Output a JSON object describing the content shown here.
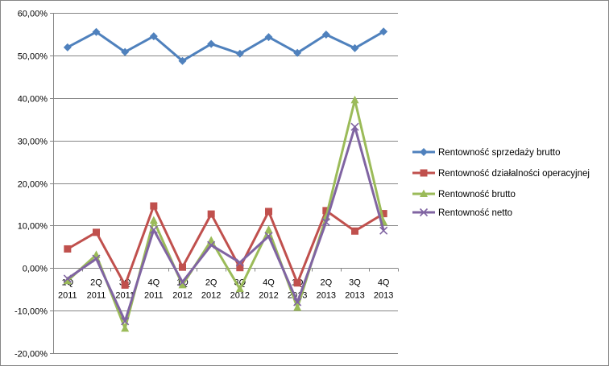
{
  "chart_data": {
    "type": "line",
    "categories": [
      [
        "1Q",
        "2011"
      ],
      [
        "2Q",
        "2011"
      ],
      [
        "3Q",
        "2011"
      ],
      [
        "4Q",
        "2011"
      ],
      [
        "1Q",
        "2012"
      ],
      [
        "2Q",
        "2012"
      ],
      [
        "3Q",
        "2012"
      ],
      [
        "4Q",
        "2012"
      ],
      [
        "1Q",
        "2013"
      ],
      [
        "2Q",
        "2013"
      ],
      [
        "3Q",
        "2013"
      ],
      [
        "4Q",
        "2013"
      ]
    ],
    "ylim": [
      -0.2,
      0.6
    ],
    "yticks": [
      -0.2,
      -0.1,
      0.0,
      0.1,
      0.2,
      0.3,
      0.4,
      0.5,
      0.6
    ],
    "ytick_labels": [
      "-20,00%",
      "-10,00%",
      "0,00%",
      "10,00%",
      "20,00%",
      "30,00%",
      "40,00%",
      "50,00%",
      "60,00%"
    ],
    "grid": "horizontal",
    "legend": "right",
    "series": [
      {
        "name": "Rentowność sprzedaży brutto",
        "color": "#4F81BD",
        "marker": "diamond",
        "values": [
          0.519,
          0.555,
          0.508,
          0.545,
          0.487,
          0.527,
          0.504,
          0.543,
          0.506,
          0.549,
          0.517,
          0.556
        ]
      },
      {
        "name": "Rentowność działalności operacyjnej",
        "color": "#C0504D",
        "marker": "square",
        "values": [
          0.045,
          0.084,
          -0.04,
          0.146,
          0.002,
          0.127,
          0.001,
          0.133,
          -0.035,
          0.135,
          0.087,
          0.128
        ]
      },
      {
        "name": "Rentowność brutto",
        "color": "#9BBB59",
        "marker": "triangle",
        "values": [
          -0.03,
          0.031,
          -0.142,
          0.112,
          -0.04,
          0.065,
          -0.049,
          0.09,
          -0.093,
          0.12,
          0.395,
          0.108
        ]
      },
      {
        "name": "Rentowność netto",
        "color": "#8064A2",
        "marker": "x",
        "values": [
          -0.025,
          0.022,
          -0.125,
          0.09,
          -0.033,
          0.054,
          0.013,
          0.075,
          -0.08,
          0.108,
          0.332,
          0.088
        ]
      }
    ]
  }
}
